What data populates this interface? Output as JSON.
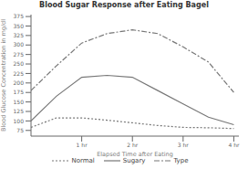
{
  "chart_data": {
    "type": "line",
    "title": "Blood Sugar Response after Eating Bagel",
    "xlabel": "Elapsed Time after Eating",
    "ylabel": "Blood Glucose Concentration in mg/dl",
    "x": [
      0,
      0.5,
      1.0,
      1.5,
      2.0,
      2.5,
      3.0,
      3.5,
      4.0
    ],
    "series": [
      {
        "name": "Normal",
        "color": "#777777",
        "line_style": "dotted",
        "values": [
          83,
          108,
          108,
          102,
          95,
          88,
          83,
          82,
          80
        ]
      },
      {
        "name": "Sugary",
        "color": "#777777",
        "line_style": "solid",
        "values": [
          100,
          165,
          215,
          220,
          215,
          180,
          145,
          110,
          90
        ]
      },
      {
        "name": "Type",
        "color": "#777777",
        "line_style": "dashdot",
        "values": [
          180,
          245,
          305,
          330,
          340,
          330,
          295,
          255,
          175
        ]
      }
    ],
    "xlim": [
      0,
      4.1
    ],
    "xticks": [
      {
        "value": 1,
        "label": "1 hr"
      },
      {
        "value": 2,
        "label": "2 hr"
      },
      {
        "value": 3,
        "label": "3 hr"
      },
      {
        "value": 4,
        "label": "4 hr"
      }
    ],
    "ylim": [
      60,
      380
    ],
    "yticks": [
      75,
      100,
      125,
      150,
      175,
      200,
      225,
      250,
      275,
      300,
      325,
      350,
      375
    ],
    "grid": false,
    "legend": "bottom"
  }
}
